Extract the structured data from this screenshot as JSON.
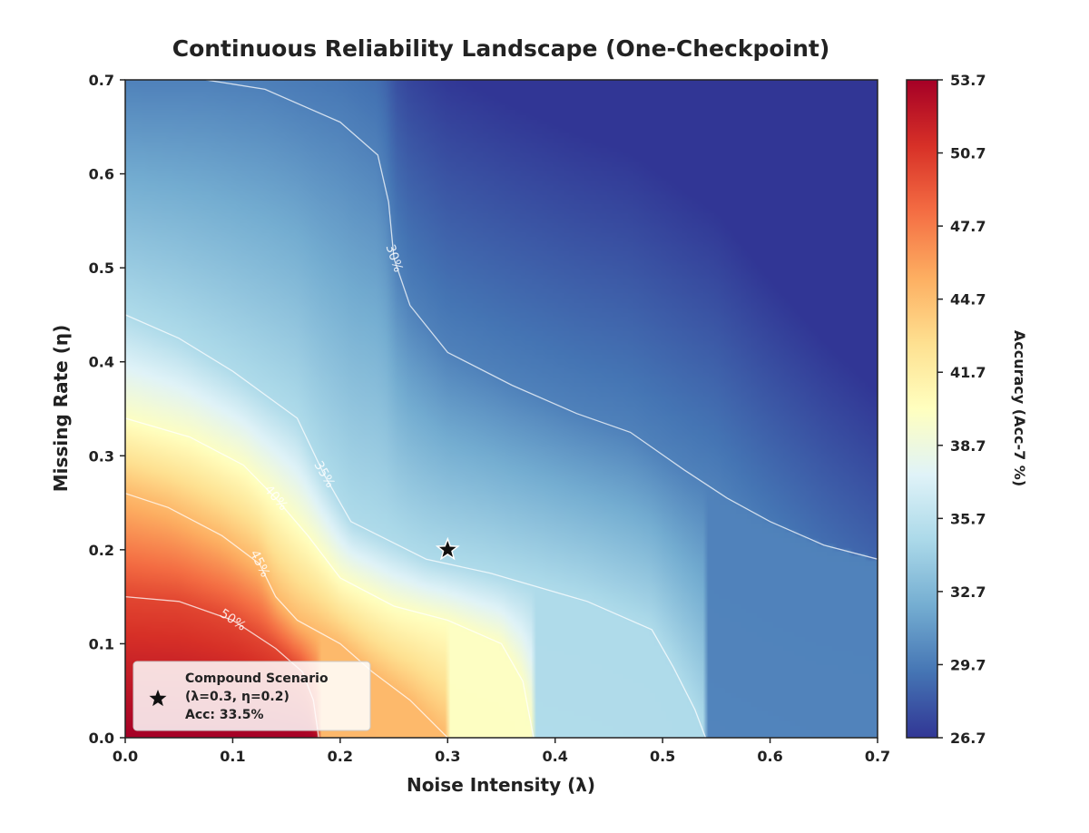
{
  "chart_data": {
    "type": "heatmap",
    "title": "Continuous Reliability Landscape (One-Checkpoint)",
    "xlabel": "Noise Intensity (λ)",
    "ylabel": "Missing Rate (η)",
    "xlim": [
      0.0,
      0.7
    ],
    "ylim": [
      0.0,
      0.7
    ],
    "x_ticks": [
      "0.0",
      "0.1",
      "0.2",
      "0.3",
      "0.4",
      "0.5",
      "0.6",
      "0.7"
    ],
    "y_ticks": [
      "0.0",
      "0.1",
      "0.2",
      "0.3",
      "0.4",
      "0.5",
      "0.6",
      "0.7"
    ],
    "colormap": "RdYlBu_r",
    "colorbar": {
      "label": "Accuracy (Acc-7 %)",
      "min": 26.7,
      "max": 53.7,
      "ticks": [
        "26.7",
        "29.7",
        "32.7",
        "35.7",
        "38.7",
        "41.7",
        "44.7",
        "47.7",
        "50.7",
        "53.7"
      ]
    },
    "contours": [
      {
        "label": "30%",
        "level": 30,
        "points": [
          [
            0.075,
            0.7
          ],
          [
            0.13,
            0.69
          ],
          [
            0.2,
            0.655
          ],
          [
            0.235,
            0.62
          ],
          [
            0.245,
            0.57
          ],
          [
            0.25,
            0.51
          ],
          [
            0.265,
            0.46
          ],
          [
            0.3,
            0.41
          ],
          [
            0.36,
            0.375
          ],
          [
            0.42,
            0.345
          ],
          [
            0.47,
            0.325
          ],
          [
            0.52,
            0.285
          ],
          [
            0.56,
            0.255
          ],
          [
            0.6,
            0.23
          ],
          [
            0.65,
            0.205
          ],
          [
            0.7,
            0.19
          ]
        ]
      },
      {
        "label": "35%",
        "level": 35,
        "points": [
          [
            0.0,
            0.45
          ],
          [
            0.05,
            0.425
          ],
          [
            0.1,
            0.39
          ],
          [
            0.16,
            0.34
          ],
          [
            0.185,
            0.28
          ],
          [
            0.21,
            0.23
          ],
          [
            0.28,
            0.19
          ],
          [
            0.34,
            0.175
          ],
          [
            0.43,
            0.145
          ],
          [
            0.49,
            0.115
          ],
          [
            0.51,
            0.075
          ],
          [
            0.53,
            0.03
          ],
          [
            0.54,
            0.0
          ]
        ]
      },
      {
        "label": "40%",
        "level": 40,
        "points": [
          [
            0.0,
            0.34
          ],
          [
            0.06,
            0.32
          ],
          [
            0.11,
            0.29
          ],
          [
            0.14,
            0.255
          ],
          [
            0.17,
            0.215
          ],
          [
            0.2,
            0.17
          ],
          [
            0.25,
            0.14
          ],
          [
            0.3,
            0.125
          ],
          [
            0.35,
            0.1
          ],
          [
            0.37,
            0.06
          ],
          [
            0.38,
            0.0
          ]
        ]
      },
      {
        "label": "45%",
        "level": 45,
        "points": [
          [
            0.0,
            0.26
          ],
          [
            0.04,
            0.245
          ],
          [
            0.09,
            0.215
          ],
          [
            0.125,
            0.185
          ],
          [
            0.14,
            0.15
          ],
          [
            0.16,
            0.125
          ],
          [
            0.2,
            0.1
          ],
          [
            0.23,
            0.07
          ],
          [
            0.265,
            0.04
          ],
          [
            0.3,
            0.0
          ]
        ]
      },
      {
        "label": "50%",
        "level": 50,
        "points": [
          [
            0.0,
            0.15
          ],
          [
            0.05,
            0.145
          ],
          [
            0.1,
            0.125
          ],
          [
            0.14,
            0.095
          ],
          [
            0.165,
            0.07
          ],
          [
            0.175,
            0.04
          ],
          [
            0.18,
            0.0
          ]
        ]
      }
    ],
    "marker": {
      "x": 0.3,
      "y": 0.2,
      "symbol": "star"
    },
    "legend": {
      "position": "lower-left",
      "lines": [
        "Compound Scenario",
        "(λ=0.3, η=0.2)",
        "Acc: 33.5%"
      ]
    }
  }
}
